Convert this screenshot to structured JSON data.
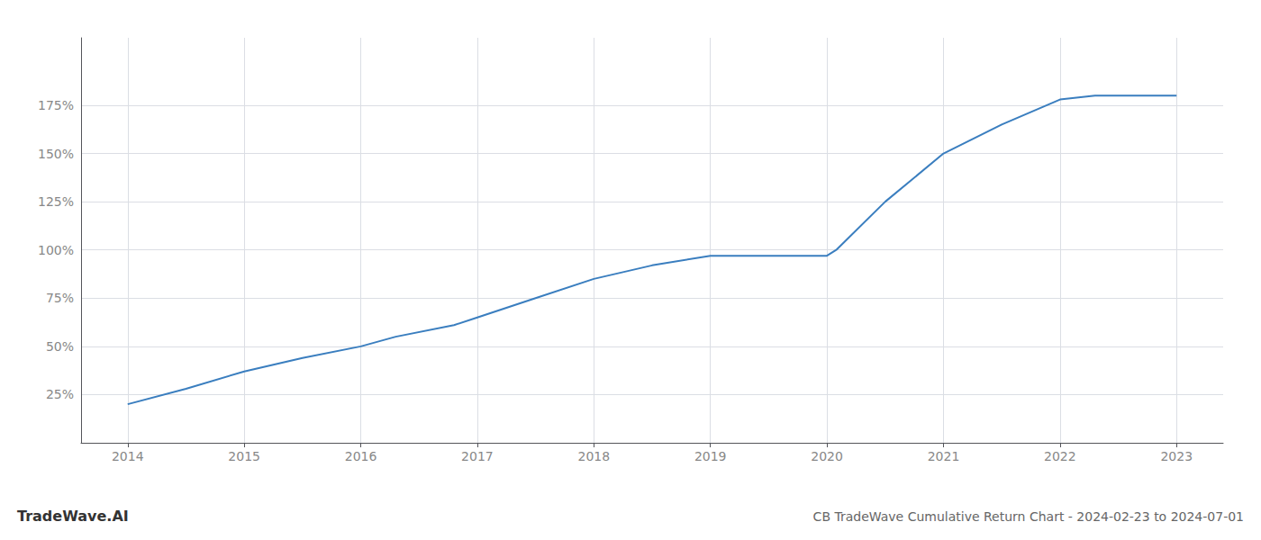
{
  "chart_data": {
    "type": "line",
    "title": "CB TradeWave Cumulative Return Chart - 2024-02-23 to 2024-07-01",
    "annotations": [
      "TradeWave.AI"
    ],
    "x": [
      2014,
      2014.5,
      2015,
      2015.5,
      2016,
      2016.3,
      2016.8,
      2017,
      2017.5,
      2018,
      2018.5,
      2019,
      2019.5,
      2019.9,
      2020.0,
      2020.08,
      2020.5,
      2021,
      2021.5,
      2022,
      2022.3,
      2022.8,
      2023
    ],
    "values": [
      20,
      28,
      37,
      44,
      50,
      55,
      61,
      65,
      75,
      85,
      92,
      97,
      97,
      97,
      97,
      100,
      125,
      150,
      165,
      178,
      180,
      180,
      180
    ],
    "color": "#3a7ebf",
    "xlim": [
      2013.6,
      2023.4
    ],
    "xticks": [
      2014,
      2015,
      2016,
      2017,
      2018,
      2019,
      2020,
      2021,
      2022,
      2023
    ],
    "ylim": [
      0,
      210
    ],
    "yticks": [
      {
        "value": 25,
        "label": "25%"
      },
      {
        "value": 50,
        "label": "50%"
      },
      {
        "value": 75,
        "label": "75%"
      },
      {
        "value": 100,
        "label": "100%"
      },
      {
        "value": 125,
        "label": "125%"
      },
      {
        "value": 150,
        "label": "150%"
      },
      {
        "value": 175,
        "label": "175%"
      }
    ],
    "grid": true
  }
}
